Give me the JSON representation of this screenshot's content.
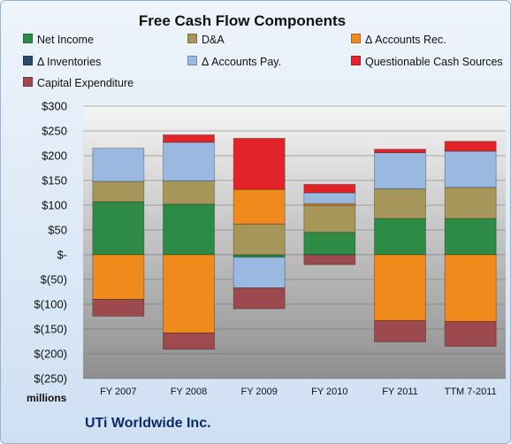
{
  "chart_data": {
    "type": "bar",
    "stacked": true,
    "title": "Free Cash Flow Components",
    "footer": "UTi Worldwide Inc.",
    "units_label": "millions",
    "categories": [
      "FY 2007",
      "FY 2008",
      "FY 2009",
      "FY 2010",
      "FY 2011",
      "TTM 7-2011"
    ],
    "ylim": [
      -250,
      300
    ],
    "yticks": [
      300,
      250,
      200,
      150,
      100,
      50,
      0,
      -50,
      -100,
      -150,
      -200,
      -250
    ],
    "ytick_labels": [
      "$300",
      "$250",
      "$200",
      "$150",
      "$100",
      "$50",
      "$-",
      "$(50)",
      "$(100)",
      "$(150)",
      "$(200)",
      "$(250)"
    ],
    "grid": true,
    "legend_position": "top",
    "series": [
      {
        "name": "Net Income",
        "color": "#2e8b46",
        "values": [
          107,
          102,
          -5,
          45,
          73,
          73
        ]
      },
      {
        "name": "D&A",
        "color": "#a7965a",
        "values": [
          41,
          47,
          62,
          55,
          60,
          63
        ]
      },
      {
        "name": "Δ Accounts Rec.",
        "color": "#f08a1c",
        "values": [
          -90,
          -158,
          70,
          3,
          -133,
          -135
        ]
      },
      {
        "name": "Δ Inventories",
        "color": "#2c4a6e",
        "values": [
          0,
          0,
          0,
          0,
          0,
          0
        ]
      },
      {
        "name": "Δ Accounts Pay.",
        "color": "#9ab9e1",
        "values": [
          67,
          78,
          -62,
          22,
          73,
          73
        ]
      },
      {
        "name": "Questionable Cash Sources",
        "color": "#e2242a",
        "values": [
          0,
          15,
          103,
          17,
          7,
          20
        ]
      },
      {
        "name": "Capital Expenditure",
        "color": "#9c4a4e",
        "values": [
          -34,
          -33,
          -42,
          -20,
          -43,
          -50
        ]
      }
    ]
  }
}
